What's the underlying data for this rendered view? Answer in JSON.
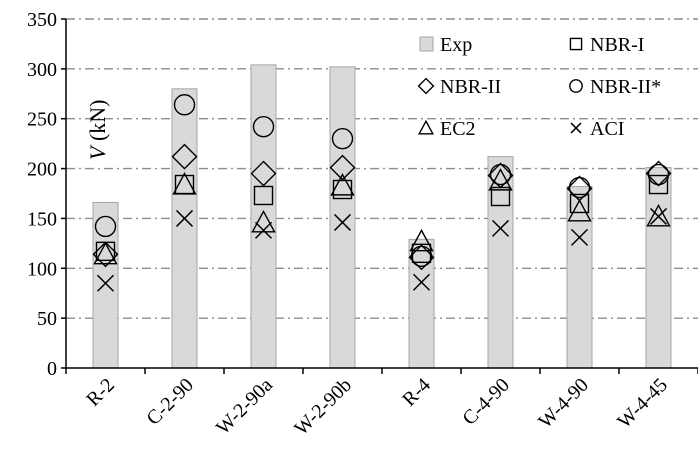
{
  "chart_data": {
    "type": "bar",
    "categories": [
      "R-2",
      "C-2-90",
      "W-2-90a",
      "W-2-90b",
      "R-4",
      "C-4-90",
      "W-4-90",
      "W-4-45"
    ],
    "ylabel_var": "V",
    "ylabel_unit": "(kN)",
    "ylim": [
      0,
      350
    ],
    "yticks": [
      0,
      50,
      100,
      150,
      200,
      250,
      300,
      350
    ],
    "grid": "horizontal dash-dot",
    "legend_position": "top-right",
    "bar_series": {
      "name": "Exp",
      "values": [
        166,
        280,
        304,
        302,
        129,
        212,
        182,
        201
      ],
      "color": "#d9d9d9"
    },
    "marker_series": [
      {
        "name": "NBR-I",
        "marker": "square",
        "values": [
          117,
          184,
          173,
          179,
          115,
          172,
          165,
          184
        ]
      },
      {
        "name": "NBR-II",
        "marker": "diamond",
        "values": [
          114,
          212,
          195,
          201,
          111,
          193,
          180,
          195
        ]
      },
      {
        "name": "NBR-II*",
        "marker": "circle",
        "values": [
          142,
          264,
          242,
          230,
          112,
          194,
          181,
          194
        ]
      },
      {
        "name": "EC2",
        "marker": "triangle",
        "values": [
          114,
          184,
          146,
          183,
          127,
          188,
          157,
          152
        ]
      },
      {
        "name": "ACI",
        "marker": "x",
        "values": [
          85,
          150,
          138,
          146,
          86,
          140,
          131,
          152
        ]
      }
    ]
  }
}
